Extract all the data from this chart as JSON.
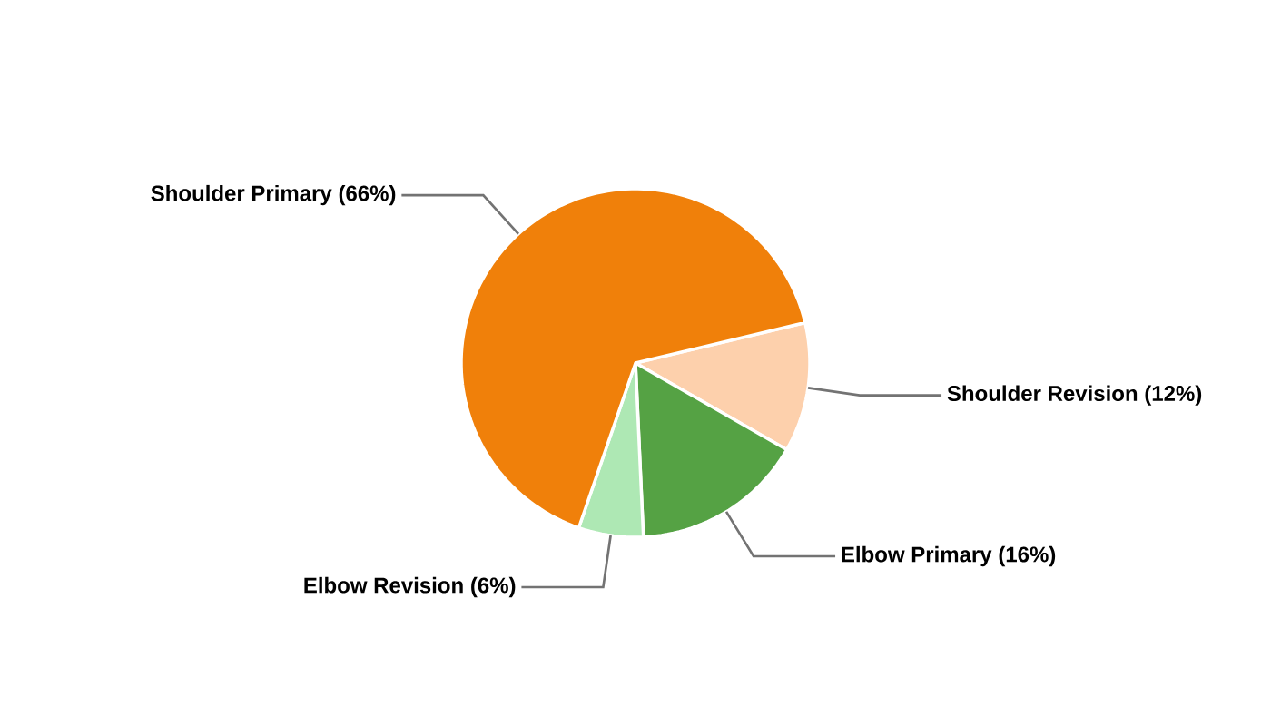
{
  "chart_data": {
    "type": "pie",
    "categories": [
      "Shoulder Revision",
      "Elbow Primary",
      "Elbow Revision",
      "Shoulder Primary"
    ],
    "values": [
      12,
      16,
      6,
      66
    ],
    "value_labels": [
      "(12%)",
      "(16%)",
      "(6%)",
      "(66%)"
    ],
    "colors": [
      "#fdd0ac",
      "#55a244",
      "#aee8b4",
      "#f0800a"
    ]
  }
}
